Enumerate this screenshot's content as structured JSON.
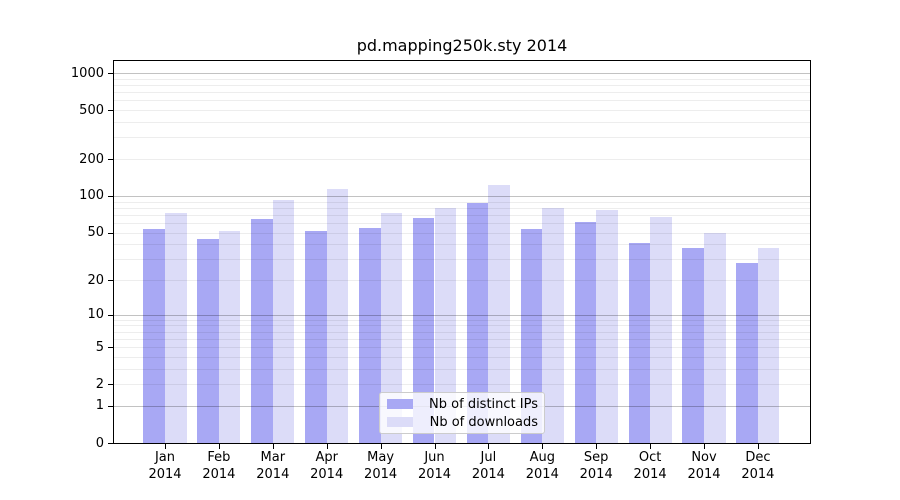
{
  "title": "pd.mapping250k.sty 2014",
  "colors": {
    "ips_bar": "#a8a8f4",
    "downloads_bar": "#dcdcf8",
    "axis": "#000000",
    "major_grid": "#c3c3c3",
    "minor_grid": "#ececec",
    "legend_border": "#cccccc"
  },
  "chart_data": {
    "type": "bar",
    "title": "pd.mapping250k.sty 2014",
    "xlabel": "",
    "ylabel": "",
    "x_labels": [
      {
        "month": "Jan",
        "year": "2014"
      },
      {
        "month": "Feb",
        "year": "2014"
      },
      {
        "month": "Mar",
        "year": "2014"
      },
      {
        "month": "Apr",
        "year": "2014"
      },
      {
        "month": "May",
        "year": "2014"
      },
      {
        "month": "Jun",
        "year": "2014"
      },
      {
        "month": "Jul",
        "year": "2014"
      },
      {
        "month": "Aug",
        "year": "2014"
      },
      {
        "month": "Sep",
        "year": "2014"
      },
      {
        "month": "Oct",
        "year": "2014"
      },
      {
        "month": "Nov",
        "year": "2014"
      },
      {
        "month": "Dec",
        "year": "2014"
      }
    ],
    "series": [
      {
        "name": "Nb of distinct IPs",
        "color": "#a8a8f4",
        "values": [
          53,
          44,
          65,
          51,
          54,
          66,
          87,
          53,
          61,
          41,
          37,
          28
        ]
      },
      {
        "name": "Nb of downloads",
        "color": "#dcdcf8",
        "values": [
          72,
          51,
          92,
          114,
          72,
          80,
          123,
          80,
          76,
          67,
          50,
          37
        ]
      }
    ],
    "yscale": "log10(1+x)",
    "ylim": [
      0,
      1300
    ],
    "yticks": [
      0,
      1,
      2,
      5,
      10,
      20,
      50,
      100,
      200,
      500,
      1000
    ],
    "major_gridlines": [
      1,
      10,
      100,
      1000
    ],
    "minor_gridlines": [
      2,
      3,
      4,
      5,
      6,
      7,
      8,
      9,
      20,
      30,
      40,
      50,
      60,
      70,
      80,
      90,
      200,
      300,
      400,
      500,
      600,
      700,
      800,
      900
    ],
    "grid_drawn_over_bars": true,
    "legend_position": "bottom-center"
  },
  "legend": {
    "items": [
      {
        "label": "Nb of distinct IPs",
        "color": "#a8a8f4"
      },
      {
        "label": "Nb of downloads",
        "color": "#dcdcf8"
      }
    ]
  }
}
